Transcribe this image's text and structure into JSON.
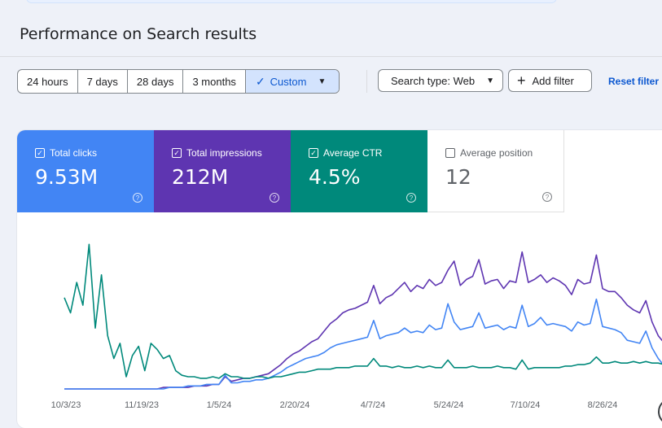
{
  "page": {
    "title": "Performance on Search results"
  },
  "date_ranges": {
    "items": [
      "24 hours",
      "7 days",
      "28 days",
      "3 months"
    ],
    "custom_label": "Custom",
    "active": "Custom"
  },
  "filters": {
    "search_type_label": "Search type: Web",
    "add_filter_label": "Add filter",
    "reset_label": "Reset filter"
  },
  "metrics": {
    "clicks": {
      "label": "Total clicks",
      "value": "9.53M",
      "checked": true,
      "color": "#4285f4"
    },
    "impressions": {
      "label": "Total impressions",
      "value": "212M",
      "checked": true,
      "color": "#5e35b1"
    },
    "ctr": {
      "label": "Average CTR",
      "value": "4.5%",
      "checked": true,
      "color": "#00897b"
    },
    "position": {
      "label": "Average position",
      "value": "12",
      "checked": false,
      "color": "#5f6368"
    }
  },
  "chart_data": {
    "type": "line",
    "x_ticks": [
      "10/3/23",
      "11/19/23",
      "1/5/24",
      "2/20/24",
      "4/7/24",
      "5/24/24",
      "7/10/24",
      "8/26/24"
    ],
    "grid": false,
    "series": [
      {
        "name": "Total impressions",
        "color": "#5e35b1",
        "values": [
          0,
          0,
          0,
          0,
          0,
          0,
          0,
          0,
          0,
          0,
          0,
          0,
          0,
          0,
          0,
          0,
          0.01,
          0.01,
          0.01,
          0.01,
          0.01,
          0.02,
          0.02,
          0.02,
          0.03,
          0.03,
          0.08,
          0.05,
          0.06,
          0.07,
          0.07,
          0.08,
          0.09,
          0.1,
          0.13,
          0.16,
          0.2,
          0.23,
          0.25,
          0.28,
          0.31,
          0.33,
          0.38,
          0.43,
          0.46,
          0.5,
          0.52,
          0.53,
          0.55,
          0.57,
          0.68,
          0.56,
          0.6,
          0.62,
          0.66,
          0.7,
          0.64,
          0.68,
          0.66,
          0.72,
          0.68,
          0.7,
          0.78,
          0.84,
          0.68,
          0.72,
          0.74,
          0.85,
          0.69,
          0.71,
          0.72,
          0.66,
          0.71,
          0.7,
          0.9,
          0.7,
          0.72,
          0.75,
          0.7,
          0.73,
          0.71,
          0.68,
          0.62,
          0.72,
          0.69,
          0.7,
          0.88,
          0.66,
          0.64,
          0.64,
          0.6,
          0.55,
          0.52,
          0.5,
          0.58,
          0.44,
          0.35,
          0.3
        ]
      },
      {
        "name": "Total clicks",
        "color": "#4285f4",
        "values": [
          0,
          0,
          0,
          0,
          0,
          0,
          0,
          0,
          0,
          0,
          0,
          0,
          0,
          0,
          0,
          0,
          0,
          0.01,
          0.01,
          0.01,
          0.02,
          0.02,
          0.02,
          0.03,
          0.03,
          0.03,
          0.09,
          0.04,
          0.04,
          0.05,
          0.05,
          0.06,
          0.06,
          0.07,
          0.09,
          0.11,
          0.14,
          0.16,
          0.18,
          0.2,
          0.21,
          0.22,
          0.24,
          0.27,
          0.29,
          0.3,
          0.31,
          0.32,
          0.33,
          0.34,
          0.45,
          0.33,
          0.35,
          0.36,
          0.37,
          0.4,
          0.37,
          0.38,
          0.37,
          0.42,
          0.39,
          0.4,
          0.56,
          0.44,
          0.39,
          0.4,
          0.41,
          0.5,
          0.4,
          0.41,
          0.42,
          0.39,
          0.41,
          0.4,
          0.55,
          0.41,
          0.43,
          0.47,
          0.42,
          0.43,
          0.42,
          0.41,
          0.38,
          0.44,
          0.42,
          0.43,
          0.59,
          0.41,
          0.4,
          0.39,
          0.37,
          0.32,
          0.31,
          0.3,
          0.38,
          0.27,
          0.2,
          0.15
        ]
      },
      {
        "name": "Average CTR",
        "color": "#00897b",
        "values": [
          0.6,
          0.5,
          0.7,
          0.55,
          0.95,
          0.4,
          0.75,
          0.35,
          0.2,
          0.3,
          0.08,
          0.22,
          0.28,
          0.12,
          0.3,
          0.26,
          0.2,
          0.22,
          0.12,
          0.09,
          0.08,
          0.08,
          0.07,
          0.07,
          0.08,
          0.07,
          0.1,
          0.08,
          0.08,
          0.07,
          0.07,
          0.08,
          0.08,
          0.07,
          0.08,
          0.08,
          0.09,
          0.1,
          0.11,
          0.11,
          0.12,
          0.13,
          0.13,
          0.13,
          0.14,
          0.14,
          0.14,
          0.15,
          0.15,
          0.15,
          0.2,
          0.15,
          0.15,
          0.14,
          0.15,
          0.14,
          0.14,
          0.15,
          0.14,
          0.15,
          0.14,
          0.14,
          0.19,
          0.14,
          0.14,
          0.14,
          0.15,
          0.14,
          0.14,
          0.14,
          0.15,
          0.14,
          0.14,
          0.13,
          0.19,
          0.13,
          0.14,
          0.14,
          0.14,
          0.14,
          0.14,
          0.15,
          0.15,
          0.16,
          0.16,
          0.17,
          0.21,
          0.17,
          0.17,
          0.18,
          0.17,
          0.17,
          0.18,
          0.17,
          0.18,
          0.17,
          0.17,
          0.16
        ]
      }
    ]
  }
}
